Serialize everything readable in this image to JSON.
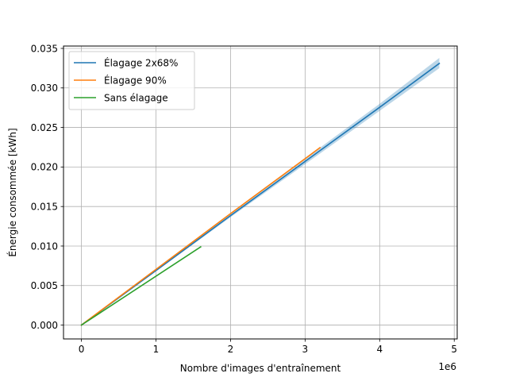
{
  "chart_data": {
    "type": "line",
    "title": "",
    "xlabel": "Nombre d'images d'entraînement",
    "ylabel": "Énergie consommée [kWh]",
    "x_offset_label": "1e6",
    "xlim": [
      -0.24,
      5.04
    ],
    "ylim": [
      -0.00175,
      0.0353
    ],
    "x_ticks": [
      0,
      1,
      2,
      3,
      4,
      5
    ],
    "x_tick_labels": [
      "0",
      "1",
      "2",
      "3",
      "4",
      "5"
    ],
    "y_ticks": [
      0,
      0.005,
      0.01,
      0.015,
      0.02,
      0.025,
      0.03,
      0.035
    ],
    "y_tick_labels": [
      "0.000",
      "0.005",
      "0.010",
      "0.015",
      "0.020",
      "0.025",
      "0.030",
      "0.035"
    ],
    "grid": true,
    "legend_position": "top-left",
    "series": [
      {
        "name": "Élagage 2x68%",
        "color": "#1f77b4",
        "x": [
          0,
          1.0,
          2.0,
          3.0,
          4.0,
          4.8
        ],
        "y": [
          0,
          0.0069,
          0.01385,
          0.0207,
          0.02755,
          0.0331
        ],
        "band_lower": [
          0,
          0.0068,
          0.01365,
          0.02035,
          0.0271,
          0.0325
        ],
        "band_upper": [
          0,
          0.007,
          0.01405,
          0.02105,
          0.028,
          0.0338
        ]
      },
      {
        "name": "Élagage 90%",
        "color": "#ff7f0e",
        "x": [
          0,
          1.0,
          2.0,
          3.2
        ],
        "y": [
          0,
          0.00705,
          0.0141,
          0.02245
        ]
      },
      {
        "name": "Sans élagage",
        "color": "#2ca02c",
        "x": [
          0,
          1.6
        ],
        "y": [
          0,
          0.0099
        ]
      }
    ]
  }
}
